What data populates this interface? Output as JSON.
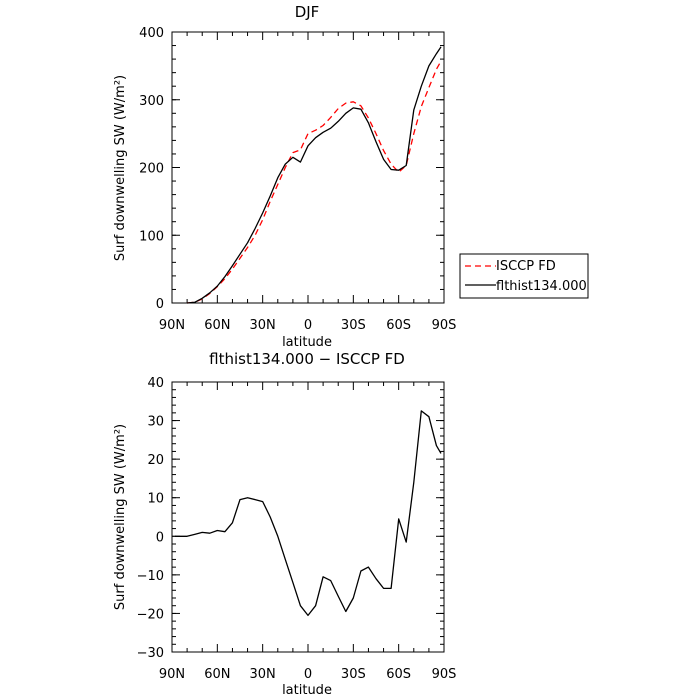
{
  "chart_data": [
    {
      "type": "line",
      "title": "DJF",
      "xlabel": "latitude",
      "ylabel": "Surf downwelling SW (W/m²)",
      "x_ticks": [
        "90N",
        "60N",
        "30N",
        "0",
        "30S",
        "60S",
        "90S"
      ],
      "x_tick_values": [
        90,
        60,
        30,
        0,
        -30,
        -60,
        -90
      ],
      "y_ticks": [
        "0",
        "100",
        "200",
        "300",
        "400"
      ],
      "xlim": [
        90,
        -90
      ],
      "ylim": [
        0,
        400
      ],
      "legend": {
        "placement": "outside-right"
      },
      "series": [
        {
          "name": "ISCCP FD",
          "color": "#ff0000",
          "dash": "dashed",
          "x": [
            80,
            75,
            70,
            65,
            60,
            55,
            50,
            45,
            40,
            35,
            30,
            25,
            20,
            15,
            10,
            5,
            0,
            -5,
            -10,
            -15,
            -20,
            -25,
            -30,
            -35,
            -40,
            -45,
            -50,
            -55,
            -60,
            -65,
            -70,
            -75,
            -80,
            -85,
            -88
          ],
          "y": [
            0,
            1,
            6,
            14,
            24,
            36,
            50,
            66,
            82,
            100,
            123,
            150,
            175,
            200,
            222,
            226,
            250,
            255,
            262,
            274,
            287,
            295,
            297,
            291,
            273,
            250,
            225,
            205,
            193,
            203,
            250,
            290,
            318,
            345,
            357
          ]
        },
        {
          "name": "flthist134.000",
          "color": "#000000",
          "dash": "solid",
          "x": [
            80,
            75,
            70,
            65,
            60,
            55,
            50,
            45,
            40,
            35,
            30,
            25,
            20,
            15,
            10,
            5,
            0,
            -5,
            -10,
            -15,
            -20,
            -25,
            -30,
            -35,
            -40,
            -45,
            -50,
            -55,
            -60,
            -65,
            -70,
            -75,
            -80,
            -85,
            -88
          ],
          "y": [
            0,
            1,
            7,
            15,
            25,
            39,
            55,
            72,
            89,
            110,
            133,
            158,
            185,
            205,
            215,
            208,
            232,
            244,
            252,
            258,
            268,
            280,
            288,
            286,
            266,
            238,
            212,
            197,
            196,
            203,
            285,
            320,
            350,
            368,
            378
          ]
        }
      ]
    },
    {
      "type": "line",
      "title": "flthist134.000 − ISCCP FD",
      "xlabel": "latitude",
      "ylabel": "Surf downwelling SW (W/m²)",
      "x_ticks": [
        "90N",
        "60N",
        "30N",
        "0",
        "30S",
        "60S",
        "90S"
      ],
      "x_tick_values": [
        90,
        60,
        30,
        0,
        -30,
        -60,
        -90
      ],
      "y_ticks": [
        "−30",
        "−20",
        "−10",
        "0",
        "10",
        "20",
        "30",
        "40"
      ],
      "xlim": [
        90,
        -90
      ],
      "ylim": [
        -30,
        40
      ],
      "series": [
        {
          "color": "#000000",
          "dash": "solid",
          "x": [
            88,
            80,
            75,
            70,
            65,
            60,
            55,
            50,
            45,
            40,
            35,
            30,
            25,
            20,
            15,
            10,
            5,
            0,
            -5,
            -10,
            -15,
            -20,
            -25,
            -30,
            -35,
            -40,
            -45,
            -50,
            -55,
            -60,
            -65,
            -70,
            -75,
            -80,
            -85,
            -88
          ],
          "y": [
            0,
            0,
            0.5,
            1,
            0.8,
            1.5,
            1.2,
            3.5,
            9.5,
            10,
            9.5,
            9,
            5,
            0,
            -6,
            -12,
            -18,
            -20.5,
            -18,
            -10.5,
            -11.5,
            -15.5,
            -19.5,
            -16,
            -9,
            -8,
            -11,
            -13.5,
            -13.5,
            4.5,
            -1.5,
            14,
            32.5,
            31,
            23.5,
            21.5
          ]
        }
      ]
    }
  ]
}
